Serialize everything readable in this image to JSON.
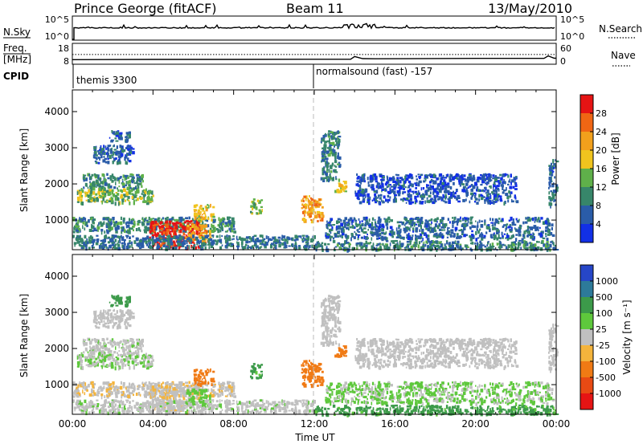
{
  "header": {
    "station": "Prince George (fitACF)",
    "beam": "Beam 11",
    "date": "13/May/2010"
  },
  "colors": {
    "axis": "#000000",
    "noon_marker": "#bbbbbb"
  },
  "chart_data": [
    {
      "type": "line",
      "name": "noise-panel",
      "left_label": "N.Sky",
      "left_ticks": [
        "10^5",
        "10^0"
      ],
      "right_label": "N.Search",
      "right_ticks": [
        "10^5",
        "10^0"
      ],
      "xlim_hours": [
        0,
        24
      ]
    },
    {
      "type": "line",
      "name": "frequency-panel",
      "left_label_top": "Freq.",
      "left_label_bottom": "[MHz]",
      "left_ticks": [
        18,
        8
      ],
      "right_label": "Nave",
      "right_ticks": [
        60,
        0
      ],
      "freq_mhz": [
        [
          0,
          10.2
        ],
        [
          4,
          10.3
        ],
        [
          8,
          10.3
        ],
        [
          12,
          10.4
        ],
        [
          13.8,
          10.4
        ],
        [
          14.0,
          11.7
        ],
        [
          14.4,
          10.7
        ],
        [
          15.0,
          10.6
        ],
        [
          20.0,
          10.8
        ],
        [
          23.4,
          10.8
        ],
        [
          23.6,
          12.0
        ],
        [
          23.9,
          10.9
        ],
        [
          24,
          10.9
        ]
      ],
      "nave_level": 28,
      "xlim_hours": [
        0,
        24
      ]
    },
    {
      "type": "table",
      "name": "cpid-strip",
      "label": "CPID",
      "segments": [
        {
          "start_hour": 0,
          "end_hour": 12,
          "text": "themis 3300"
        },
        {
          "start_hour": 12,
          "end_hour": 24,
          "text": "normalsound (fast) -157"
        }
      ]
    },
    {
      "type": "heatmap",
      "name": "power-panel",
      "ylabel": "Slant Range [km]",
      "ylim": [
        180,
        4600
      ],
      "yticks": [
        1000,
        2000,
        3000,
        4000
      ],
      "xlim_hours": [
        0,
        24
      ],
      "colorbar_label": "Power [dB]",
      "colorbar_ticks": [
        4,
        8,
        12,
        16,
        20,
        24,
        28
      ],
      "colorbar_colors": [
        "#1230e6",
        "#2a5ca8",
        "#37866a",
        "#5fb04a",
        "#f0c41e",
        "#f2a01c",
        "#f06614",
        "#e61414"
      ],
      "vmin": 0,
      "vmax": 32
    },
    {
      "type": "heatmap",
      "name": "velocity-panel",
      "ylabel": "Slant Range [km]",
      "ylim": [
        180,
        4600
      ],
      "yticks": [
        1000,
        2000,
        3000,
        4000
      ],
      "xlim_hours": [
        0,
        24
      ],
      "xticks": [
        "00:00",
        "04:00",
        "08:00",
        "12:00",
        "16:00",
        "20:00",
        "00:00"
      ],
      "xlabel": "Time UT",
      "colorbar_label": "Velocity [m s⁻¹]",
      "colorbar_ticks": [
        "1000",
        "500",
        "100",
        "25",
        "-25",
        "-100",
        "-500",
        "-1000"
      ],
      "colorbar_colors": [
        "#2646c8",
        "#2d7a9a",
        "#3c9a4a",
        "#5ec83c",
        "#c0c0c0",
        "#f4b43c",
        "#f07a14",
        "#e84a14",
        "#e61414"
      ]
    }
  ],
  "echo_regions": [
    {
      "t0": 0.2,
      "t1": 4.0,
      "r0": 1500,
      "r1": 1900,
      "p": 14,
      "v": 20
    },
    {
      "t0": 0.5,
      "t1": 3.5,
      "r0": 1900,
      "r1": 2300,
      "p": 10,
      "v": 10
    },
    {
      "t0": 1.0,
      "t1": 3.0,
      "r0": 2600,
      "r1": 3100,
      "p": 6,
      "v": 0
    },
    {
      "t0": 1.8,
      "t1": 2.8,
      "r0": 3200,
      "r1": 3500,
      "p": 7,
      "v": 200
    },
    {
      "t0": 0.0,
      "t1": 8.0,
      "r0": 700,
      "r1": 1100,
      "p": 10,
      "v": -15
    },
    {
      "t0": 3.8,
      "t1": 6.3,
      "r0": 250,
      "r1": 1000,
      "p": 30,
      "v": -20
    },
    {
      "t0": 6.0,
      "t1": 7.0,
      "r0": 1000,
      "r1": 1450,
      "p": 18,
      "v": -300
    },
    {
      "t0": 5.6,
      "t1": 6.8,
      "r0": 400,
      "r1": 900,
      "p": 22,
      "v": 60
    },
    {
      "t0": 8.8,
      "t1": 9.4,
      "r0": 1200,
      "r1": 1600,
      "p": 14,
      "v": 150
    },
    {
      "t0": 0.0,
      "t1": 12.0,
      "r0": 250,
      "r1": 600,
      "p": 8,
      "v": 10
    },
    {
      "t0": 11.3,
      "t1": 12.4,
      "r0": 1000,
      "r1": 1700,
      "p": 22,
      "v": -350
    },
    {
      "t0": 12.3,
      "t1": 13.2,
      "r0": 2100,
      "r1": 3500,
      "p": 9,
      "v": 0
    },
    {
      "t0": 12.5,
      "t1": 23.8,
      "r0": 500,
      "r1": 1100,
      "p": 7,
      "v": 30
    },
    {
      "t0": 12.0,
      "t1": 24.0,
      "r0": 200,
      "r1": 450,
      "p": 9,
      "v": 150
    },
    {
      "t0": 13.0,
      "t1": 13.6,
      "r0": 1800,
      "r1": 2100,
      "p": 18,
      "v": -300
    },
    {
      "t0": 14.0,
      "t1": 22.0,
      "r0": 1500,
      "r1": 2300,
      "p": 5,
      "v": 0
    },
    {
      "t0": 23.6,
      "t1": 24.0,
      "r0": 1400,
      "r1": 2700,
      "p": 7,
      "v": 0
    }
  ]
}
